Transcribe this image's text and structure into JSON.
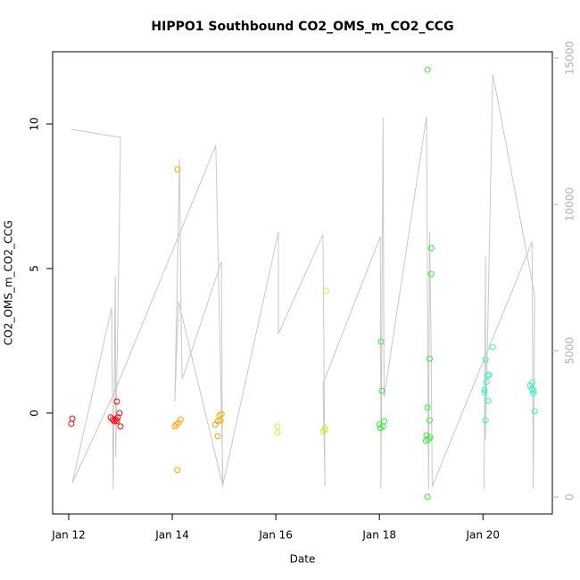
{
  "chart_data": {
    "type": "scatter",
    "title": "HIPPO1 Southbound CO2_OMS_m_CO2_CCG",
    "xlabel": "Date",
    "ylabel": "CO2_OMS_m_CO2_CCG",
    "xlim": [
      11.69,
      21.34
    ],
    "xticks": [
      {
        "value": 12,
        "label": "Jan 12"
      },
      {
        "value": 14,
        "label": "Jan 14"
      },
      {
        "value": 16,
        "label": "Jan 16"
      },
      {
        "value": 18,
        "label": "Jan 18"
      },
      {
        "value": 20,
        "label": "Jan 20"
      }
    ],
    "ylim": [
      -3.49,
      12.5
    ],
    "yticks": [
      0,
      5,
      10
    ],
    "y2lim": [
      -579,
      15213
    ],
    "y2ticks": [
      0,
      5000,
      10000,
      15000
    ],
    "y2color": "#b3b3b3",
    "series": [
      {
        "color": "#ff0000",
        "x": [
          12.05,
          12.07,
          12.81,
          12.85,
          12.88,
          12.91,
          12.93,
          12.95,
          12.93,
          12.98,
          13.0
        ],
        "values": [
          -0.37,
          -0.19,
          -0.15,
          -0.22,
          -0.28,
          -0.22,
          -0.28,
          -0.15,
          0.4,
          0.0,
          -0.46
        ]
      },
      {
        "color": "#ffa500",
        "x": [
          14.1,
          14.1,
          14.05,
          14.08,
          14.12,
          14.16,
          14.83,
          14.88,
          14.91,
          14.95,
          14.88,
          14.93
        ],
        "values": [
          8.43,
          -1.97,
          -0.46,
          -0.4,
          -0.34,
          -0.22,
          -0.4,
          -0.28,
          -0.09,
          -0.03,
          -0.8,
          -0.25
        ]
      },
      {
        "color": "#c6f53a",
        "x": [
          16.03,
          16.03,
          16.91,
          16.95,
          16.95,
          16.97
        ],
        "values": [
          -0.46,
          -0.68,
          -0.65,
          -0.59,
          -0.52,
          4.23
        ]
      },
      {
        "color": "#33ee33",
        "x": [
          18.93,
          18.03,
          18.05,
          18.0,
          18.07,
          18.09,
          18.02,
          18.93,
          18.93,
          18.97,
          19.0,
          19.0,
          18.97,
          18.91,
          18.95,
          18.98,
          18.9
        ],
        "values": [
          11.88,
          2.47,
          0.77,
          -0.4,
          -0.46,
          -0.28,
          -0.52,
          -2.9,
          0.19,
          1.88,
          5.71,
          4.81,
          -0.25,
          -0.77,
          -0.9,
          -0.83,
          -0.96
        ]
      },
      {
        "color": "#33f5c8",
        "x": [
          20.19,
          20.05,
          20.03,
          20.07,
          20.09,
          20.12,
          20.05,
          20.1,
          20.03,
          20.95,
          20.98,
          20.97,
          21.0,
          20.91,
          20.95
        ],
        "values": [
          2.28,
          -0.25,
          0.8,
          1.08,
          1.3,
          1.33,
          1.85,
          0.43,
          0.71,
          1.05,
          0.77,
          0.68,
          0.06,
          0.96,
          0.83
        ]
      },
      {
        "type": "line",
        "axis": "y2",
        "color": "#c8c8c8",
        "x": [
          12.05,
          13.0,
          12.98,
          12.93,
          12.91,
          12.9,
          12.86,
          12.83,
          12.07,
          12.88,
          14.84,
          14.98,
          14.12,
          14.05,
          14.1,
          14.14,
          14.17,
          14.19,
          14.95,
          14.97,
          16.05,
          16.05,
          16.91,
          16.95,
          16.91,
          18.02,
          18.03,
          18.07,
          18.09,
          18.91,
          18.95,
          18.97,
          19.0,
          19.02,
          20.95,
          20.97,
          21.0,
          20.19,
          20.05,
          20.05,
          20.02
        ],
        "values": [
          12561,
          12287,
          9512,
          4177,
          1372,
          7530,
          274,
          6463,
          488,
          3567,
          12012,
          366,
          6677,
          3262,
          7835,
          11555,
          6159,
          4024,
          8049,
          366,
          9055,
          5579,
          8964,
          366,
          3872,
          8903,
          274,
          12958,
          3415,
          12989,
          274,
          9055,
          4939,
          366,
          8720,
          274,
          6890,
          14452,
          1951,
          8232,
          274
        ]
      }
    ]
  }
}
